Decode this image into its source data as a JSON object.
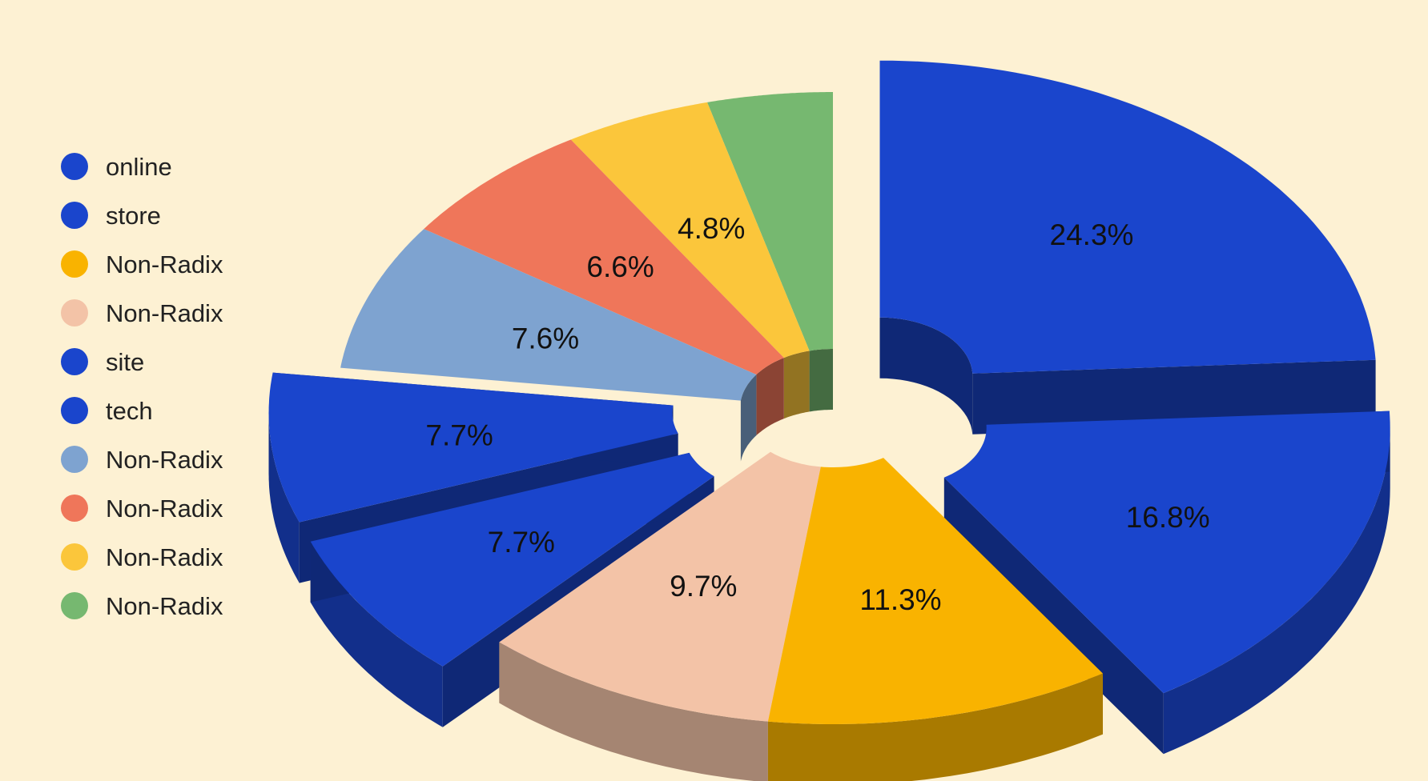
{
  "chart_data": {
    "type": "pie",
    "style": "3d-donut-exploded",
    "slices": [
      {
        "name": "online",
        "value": 24.3,
        "label": "24.3%",
        "color": "#1a45cc",
        "exploded": true
      },
      {
        "name": "store",
        "value": 16.8,
        "label": "16.8%",
        "color": "#1a45cc",
        "exploded": true
      },
      {
        "name": "Non-Radix",
        "value": 11.3,
        "label": "11.3%",
        "color": "#f9b300",
        "exploded": false
      },
      {
        "name": "Non-Radix",
        "value": 9.7,
        "label": "9.7%",
        "color": "#f3c3a7",
        "exploded": false
      },
      {
        "name": "site",
        "value": 7.7,
        "label": "7.7%",
        "color": "#1a45cc",
        "exploded": true
      },
      {
        "name": "tech",
        "value": 7.7,
        "label": "7.7%",
        "color": "#1a45cc",
        "exploded": true
      },
      {
        "name": "Non-Radix",
        "value": 7.6,
        "label": "7.6%",
        "color": "#7ea3d0",
        "exploded": false
      },
      {
        "name": "Non-Radix",
        "value": 6.6,
        "label": "6.6%",
        "color": "#ef765a",
        "exploded": false
      },
      {
        "name": "Non-Radix",
        "value": 4.8,
        "label": "4.8%",
        "color": "#fbc63b",
        "exploded": false
      },
      {
        "name": "Non-Radix",
        "value": 4.1,
        "label": "",
        "color": "#76b870",
        "exploded": false
      }
    ],
    "legend_position": "left",
    "background": "#fdf1d3"
  }
}
